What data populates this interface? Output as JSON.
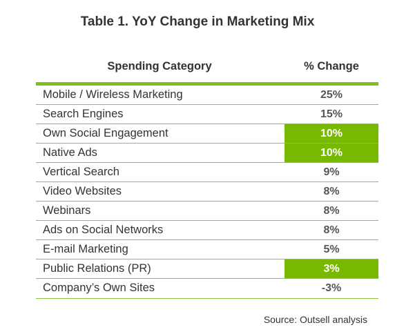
{
  "title": "Table 1. YoY Change in Marketing Mix",
  "columns": {
    "category": "Spending Category",
    "change": "% Change"
  },
  "source": "Source: Outsell analysis",
  "colors": {
    "accent": "#76b900",
    "rule": "#8cc63f",
    "text": "#333333"
  },
  "chart_data": {
    "type": "table",
    "title": "Table 1. YoY Change in Marketing Mix",
    "columns": [
      "Spending Category",
      "% Change"
    ],
    "rows": [
      {
        "category": "Mobile / Wireless Marketing",
        "change": "25%",
        "value": 25,
        "highlight": false
      },
      {
        "category": "Search Engines",
        "change": "15%",
        "value": 15,
        "highlight": false
      },
      {
        "category": "Own Social Engagement",
        "change": "10%",
        "value": 10,
        "highlight": true
      },
      {
        "category": "Native Ads",
        "change": "10%",
        "value": 10,
        "highlight": true
      },
      {
        "category": "Vertical Search",
        "change": "9%",
        "value": 9,
        "highlight": false
      },
      {
        "category": "Video Websites",
        "change": "8%",
        "value": 8,
        "highlight": false
      },
      {
        "category": "Webinars",
        "change": "8%",
        "value": 8,
        "highlight": false
      },
      {
        "category": "Ads on Social Networks",
        "change": "8%",
        "value": 8,
        "highlight": false
      },
      {
        "category": "E-mail Marketing",
        "change": "5%",
        "value": 5,
        "highlight": false
      },
      {
        "category": "Public Relations (PR)",
        "change": "3%",
        "value": 3,
        "highlight": true
      },
      {
        "category": "Company’s Own Sites",
        "change": "-3%",
        "value": -3,
        "highlight": false
      }
    ],
    "source": "Source: Outsell analysis"
  }
}
